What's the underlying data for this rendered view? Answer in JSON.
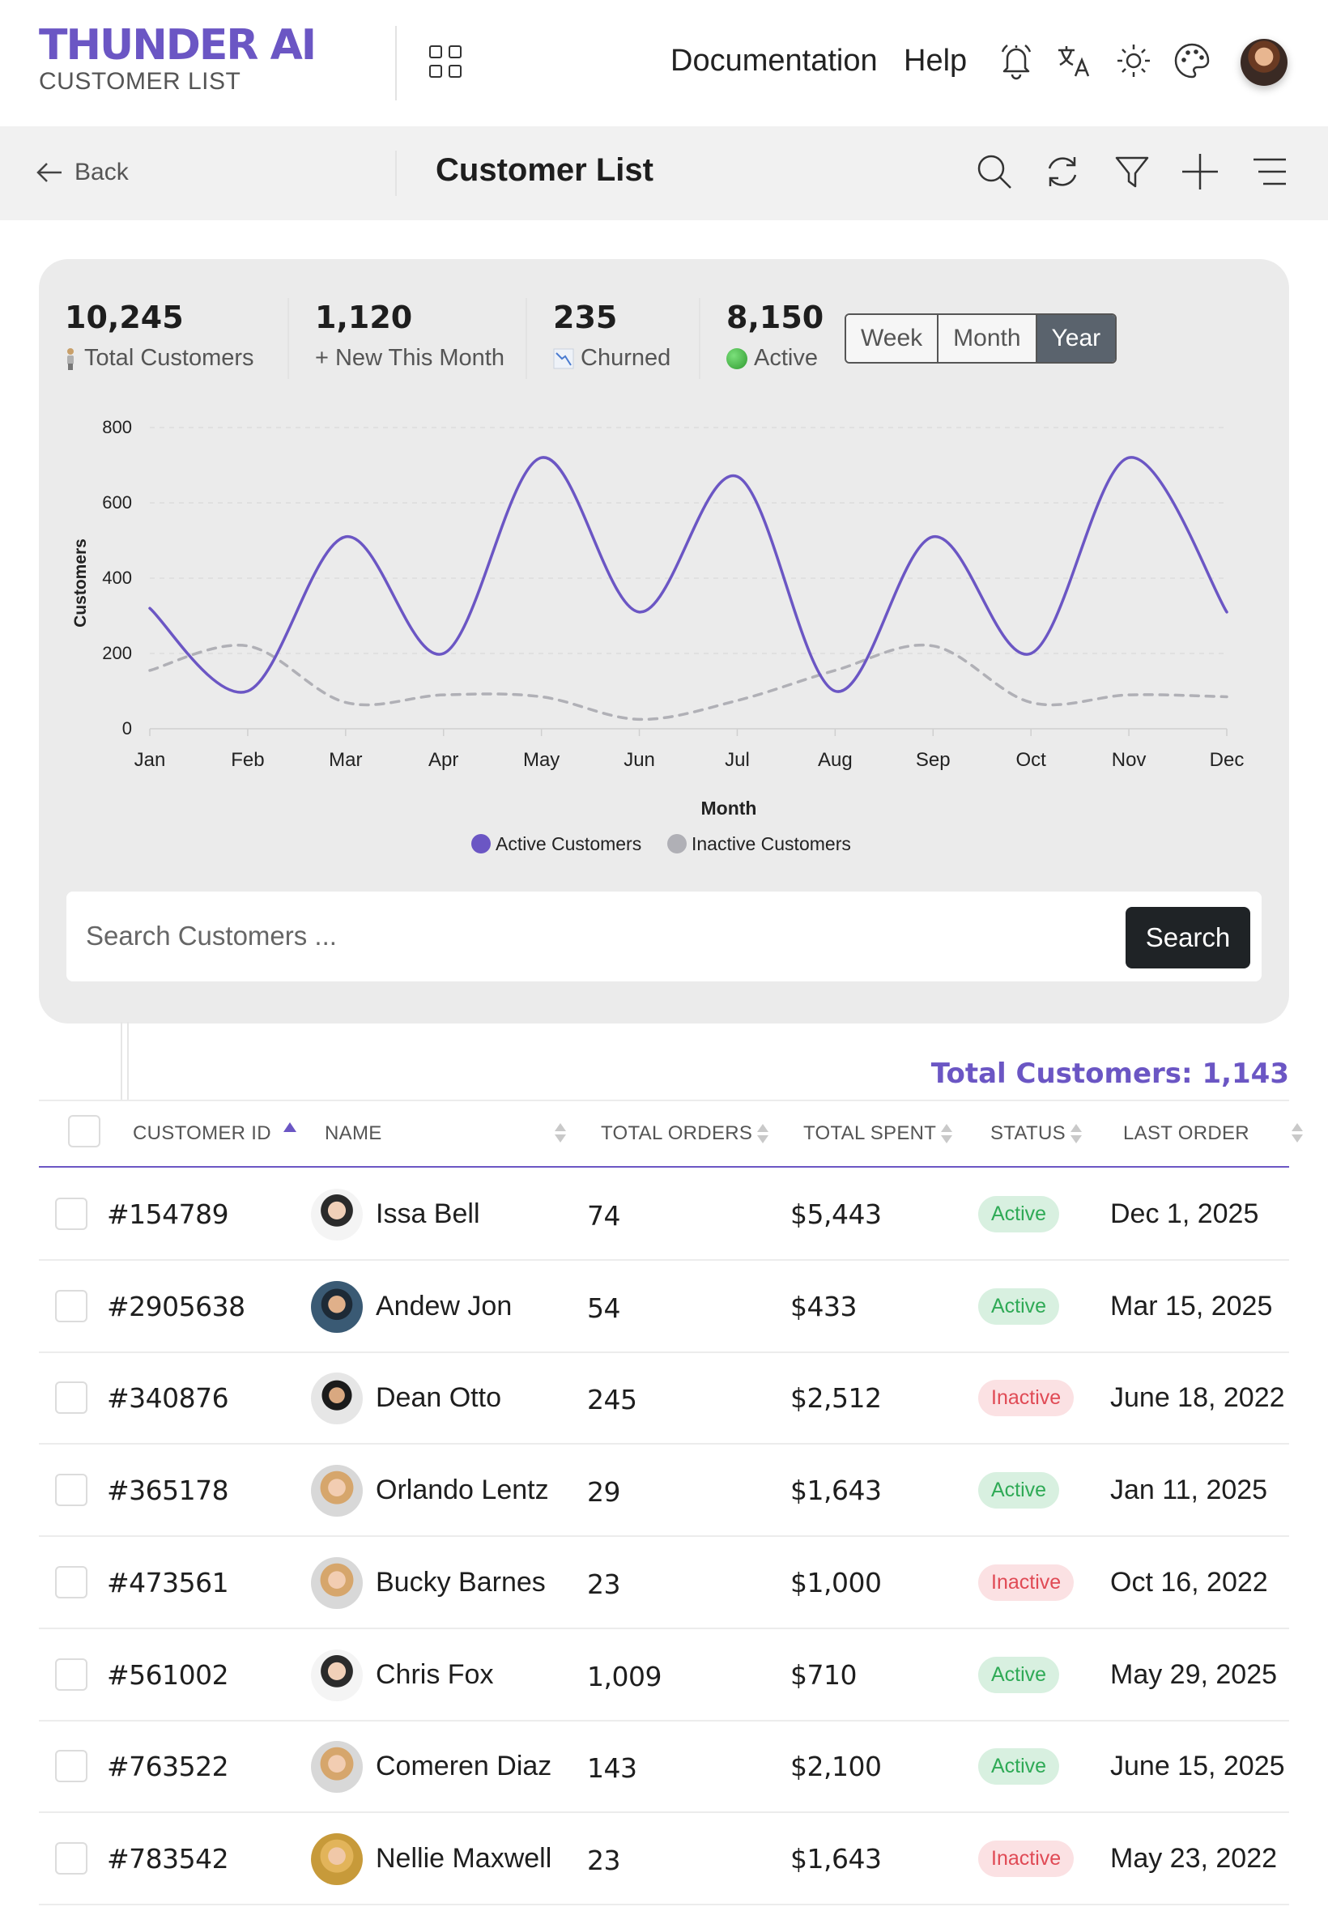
{
  "header": {
    "logo": "THUNDER AI",
    "subtitle": "CUSTOMER LIST",
    "nav": [
      "Documentation",
      "Help"
    ],
    "icons": [
      "grid-icon",
      "bell-icon",
      "translate-icon",
      "sun-icon",
      "palette-icon"
    ]
  },
  "subbar": {
    "back_label": "Back",
    "title": "Customer List"
  },
  "stats": [
    {
      "value": "10,245",
      "label": "Total Customers",
      "icon": "person-icon"
    },
    {
      "value": "1,120",
      "label": "+ New This Month",
      "icon": ""
    },
    {
      "value": "235",
      "label": "Churned",
      "icon": "chart-down-icon"
    },
    {
      "value": "8,150",
      "label": "Active",
      "icon": "green-dot-icon"
    }
  ],
  "range_tabs": [
    "Week",
    "Month",
    "Year"
  ],
  "range_selected": "Year",
  "colors": {
    "accent": "#6b56c4",
    "inactive_line": "#b0b0b6"
  },
  "chart_data": {
    "type": "line",
    "categories": [
      "Jan",
      "Feb",
      "Mar",
      "Apr",
      "May",
      "Jun",
      "Jul",
      "Aug",
      "Sep",
      "Oct",
      "Nov",
      "Dec"
    ],
    "series": [
      {
        "name": "Active Customers",
        "values": [
          320,
          100,
          510,
          200,
          720,
          310,
          670,
          100,
          510,
          200,
          720,
          310
        ],
        "color": "#6b56c4",
        "style": "solid"
      },
      {
        "name": "Inactive Customers",
        "values": [
          155,
          220,
          70,
          90,
          85,
          25,
          75,
          155,
          220,
          70,
          90,
          85
        ],
        "color": "#b0b0b6",
        "style": "dashed"
      }
    ],
    "xlabel": "Month",
    "ylabel": "Customers",
    "ylim": [
      0,
      800
    ],
    "yticks": [
      0,
      200,
      400,
      600,
      800
    ],
    "grid": true,
    "legend": "bottom"
  },
  "search": {
    "placeholder": "Search Customers ...",
    "button": "Search"
  },
  "table": {
    "total_label": "Total Customers: 1,143",
    "columns": [
      "CUSTOMER ID",
      "NAME",
      "TOTAL ORDERS",
      "TOTAL SPENT",
      "STATUS",
      "LAST ORDER"
    ],
    "rows": [
      {
        "id": "#154789",
        "name": "Issa Bell",
        "orders": "74",
        "spent": "$5,443",
        "status": "Active",
        "last": "Dec 1, 2025"
      },
      {
        "id": "#2905638",
        "name": "Andew Jon",
        "orders": "54",
        "spent": "$433",
        "status": "Active",
        "last": "Mar 15, 2025"
      },
      {
        "id": "#340876",
        "name": "Dean Otto",
        "orders": "245",
        "spent": "$2,512",
        "status": "Inactive",
        "last": "June 18, 2022"
      },
      {
        "id": "#365178",
        "name": "Orlando Lentz",
        "orders": "29",
        "spent": "$1,643",
        "status": "Active",
        "last": "Jan 11, 2025"
      },
      {
        "id": "#473561",
        "name": "Bucky Barnes",
        "orders": "23",
        "spent": "$1,000",
        "status": "Inactive",
        "last": "Oct 16, 2022"
      },
      {
        "id": "#561002",
        "name": "Chris Fox",
        "orders": "1,009",
        "spent": "$710",
        "status": "Active",
        "last": "May 29, 2025"
      },
      {
        "id": "#763522",
        "name": "Comeren Diaz",
        "orders": "143",
        "spent": "$2,100",
        "status": "Active",
        "last": "June 15, 2025"
      },
      {
        "id": "#783542",
        "name": "Nellie Maxwell",
        "orders": "23",
        "spent": "$1,643",
        "status": "Inactive",
        "last": "May 23, 2022"
      }
    ]
  }
}
